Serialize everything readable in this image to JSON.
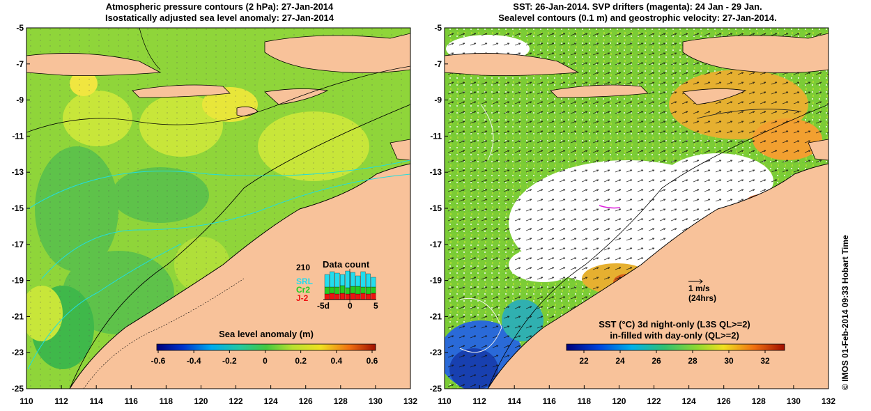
{
  "left_panel": {
    "title_line1": "Atmospheric pressure contours (2 hPa): 27-Jan-2014",
    "title_line2": "Isostatically adjusted sea level anomaly: 27-Jan-2014",
    "colorbar_label": "Sea level anomaly (m)",
    "colorbar_ticks": [
      "-0.6",
      "-0.4",
      "-0.2",
      "0",
      "0.2",
      "0.4",
      "0.6"
    ],
    "inset": {
      "title": "Data count",
      "max_label": "210",
      "series": [
        "SRL",
        "Cr2",
        "J-2"
      ],
      "series_colors": [
        "#22ddee",
        "#22cc22",
        "#ee1111"
      ],
      "x_ticks": [
        "-5d",
        "0",
        "5"
      ]
    }
  },
  "right_panel": {
    "title_line1": "SST: 26-Jan-2014. SVP drifters (magenta): 24 Jan - 29 Jan.",
    "title_line2": "Sealevel contours (0.1 m) and geostrophic velocity: 27-Jan-2014.",
    "scale_arrow_label1": "1 m/s",
    "scale_arrow_label2": "(24hrs)",
    "colorbar_label_line1": "SST (°C)  3d night-only (L3S QL>=2)",
    "colorbar_label_line2": "in-filled with day-only (QL>=2)",
    "colorbar_ticks": [
      "22",
      "24",
      "26",
      "28",
      "30",
      "32"
    ]
  },
  "axes": {
    "y_ticks": [
      "-5",
      "-7",
      "-9",
      "-11",
      "-13",
      "-15",
      "-17",
      "-19",
      "-21",
      "-23",
      "-25"
    ],
    "x_ticks": [
      "110",
      "112",
      "114",
      "116",
      "118",
      "120",
      "122",
      "124",
      "126",
      "128",
      "130",
      "132"
    ]
  },
  "credit": "© IMOS 01-Feb-2014 09:33 Hobart Time",
  "colors": {
    "land": "#f8c29a",
    "ocean_green": "#7fd23a",
    "ocean_yellowgreen": "#b9e43a",
    "ocean_yellow": "#e8e63a",
    "deep_green": "#3fb84a",
    "sst_white": "#ffffff",
    "sst_orange": "#f2a030"
  }
}
